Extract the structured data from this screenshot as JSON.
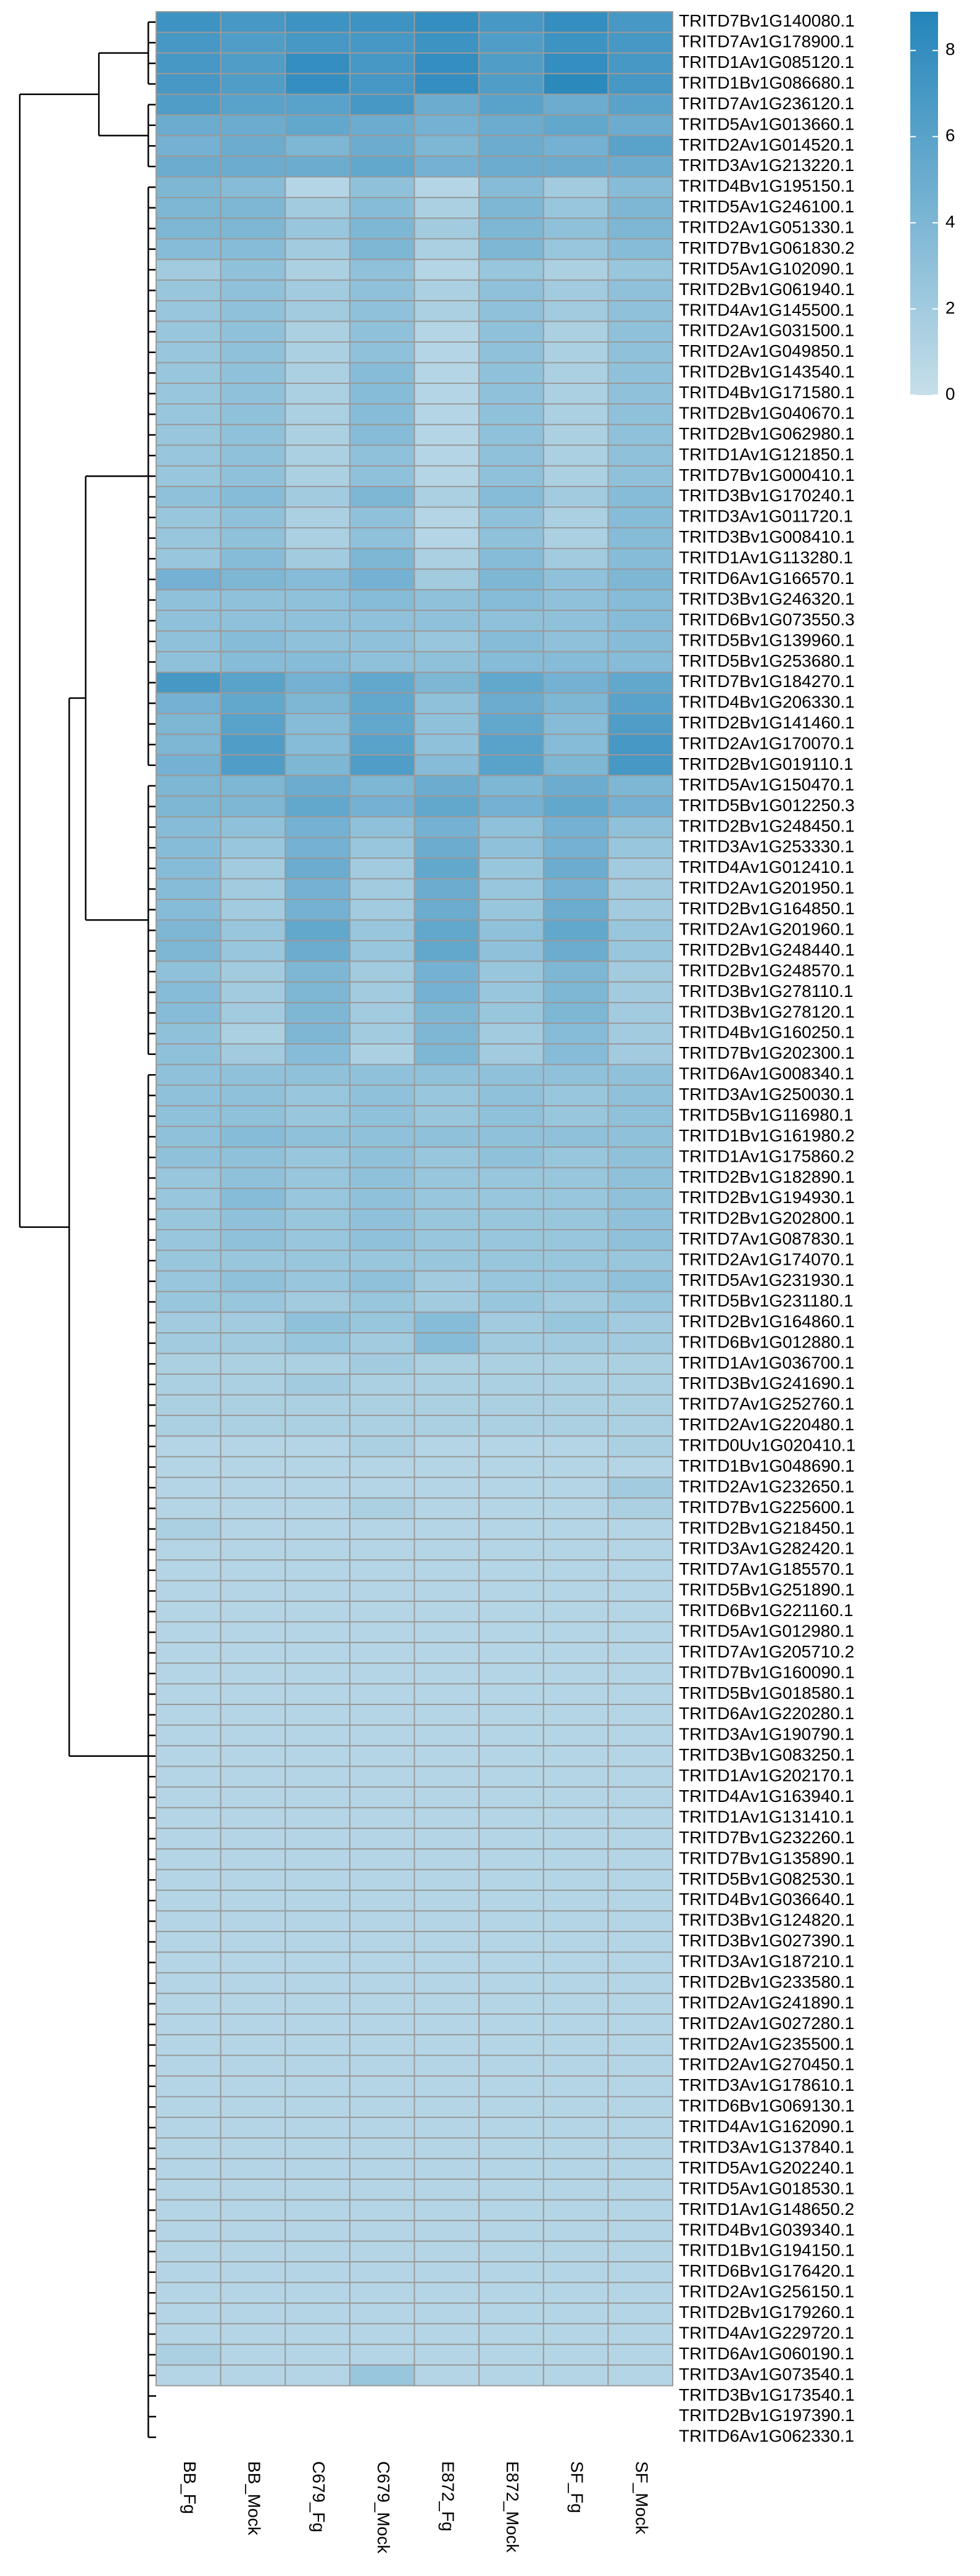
{
  "chart_data": {
    "type": "heatmap",
    "columns": [
      "BB_Fg",
      "BB_Mock",
      "C679_Fg",
      "C679_Mock",
      "E872_Fg",
      "E872_Mock",
      "SF_Fg",
      "SF_Mock"
    ],
    "rows": [
      "TRITD7Bv1G140080.1",
      "TRITD7Av1G178900.1",
      "TRITD1Av1G085120.1",
      "TRITD1Bv1G086680.1",
      "TRITD7Av1G236120.1",
      "TRITD5Av1G013660.1",
      "TRITD2Av1G014520.1",
      "TRITD3Av1G213220.1",
      "TRITD4Bv1G195150.1",
      "TRITD5Av1G246100.1",
      "TRITD2Av1G051330.1",
      "TRITD7Bv1G061830.2",
      "TRITD5Av1G102090.1",
      "TRITD2Bv1G061940.1",
      "TRITD4Av1G145500.1",
      "TRITD2Av1G031500.1",
      "TRITD2Av1G049850.1",
      "TRITD2Bv1G143540.1",
      "TRITD4Bv1G171580.1",
      "TRITD2Bv1G040670.1",
      "TRITD2Bv1G062980.1",
      "TRITD1Av1G121850.1",
      "TRITD7Bv1G000410.1",
      "TRITD3Bv1G170240.1",
      "TRITD3Av1G011720.1",
      "TRITD3Bv1G008410.1",
      "TRITD1Av1G113280.1",
      "TRITD6Av1G166570.1",
      "TRITD3Bv1G246320.1",
      "TRITD6Bv1G073550.3",
      "TRITD5Bv1G139960.1",
      "TRITD5Bv1G253680.1",
      "TRITD7Bv1G184270.1",
      "TRITD4Bv1G206330.1",
      "TRITD2Bv1G141460.1",
      "TRITD2Av1G170070.1",
      "TRITD2Bv1G019110.1",
      "TRITD5Av1G150470.1",
      "TRITD5Bv1G012250.3",
      "TRITD2Bv1G248450.1",
      "TRITD3Av1G253330.1",
      "TRITD4Av1G012410.1",
      "TRITD2Av1G201950.1",
      "TRITD2Bv1G164850.1",
      "TRITD2Av1G201960.1",
      "TRITD2Bv1G248440.1",
      "TRITD2Bv1G248570.1",
      "TRITD3Bv1G278110.1",
      "TRITD3Bv1G278120.1",
      "TRITD4Bv1G160250.1",
      "TRITD7Bv1G202300.1",
      "TRITD6Av1G008340.1",
      "TRITD3Av1G250030.1",
      "TRITD5Bv1G116980.1",
      "TRITD1Bv1G161980.2",
      "TRITD1Av1G175860.2",
      "TRITD2Bv1G182890.1",
      "TRITD2Bv1G194930.1",
      "TRITD2Bv1G202800.1",
      "TRITD7Av1G087830.1",
      "TRITD2Av1G174070.1",
      "TRITD5Av1G231930.1",
      "TRITD5Bv1G231180.1",
      "TRITD2Bv1G164860.1",
      "TRITD6Bv1G012880.1",
      "TRITD1Av1G036700.1",
      "TRITD3Bv1G241690.1",
      "TRITD7Av1G252760.1",
      "TRITD2Av1G220480.1",
      "TRITD0Uv1G020410.1",
      "TRITD1Bv1G048690.1",
      "TRITD2Av1G232650.1",
      "TRITD7Bv1G225600.1",
      "TRITD2Bv1G218450.1",
      "TRITD3Av1G282420.1",
      "TRITD7Av1G185570.1",
      "TRITD5Bv1G251890.1",
      "TRITD6Bv1G221160.1",
      "TRITD5Av1G012980.1",
      "TRITD7Av1G205710.2",
      "TRITD7Bv1G160090.1",
      "TRITD5Bv1G018580.1",
      "TRITD6Av1G220280.1",
      "TRITD3Av1G190790.1",
      "TRITD3Bv1G083250.1",
      "TRITD1Av1G202170.1",
      "TRITD4Av1G163940.1",
      "TRITD1Av1G131410.1",
      "TRITD7Bv1G232260.1",
      "TRITD7Bv1G135890.1",
      "TRITD5Bv1G082530.1",
      "TRITD4Bv1G036640.1",
      "TRITD3Bv1G124820.1",
      "TRITD3Bv1G027390.1",
      "TRITD3Av1G187210.1",
      "TRITD2Bv1G233580.1",
      "TRITD2Av1G241890.1",
      "TRITD2Av1G027280.1",
      "TRITD2Av1G235500.1",
      "TRITD2Av1G270450.1",
      "TRITD3Av1G178610.1",
      "TRITD6Bv1G069130.1",
      "TRITD4Av1G162090.1",
      "TRITD3Av1G137840.1",
      "TRITD5Av1G202240.1",
      "TRITD5Av1G018530.1",
      "TRITD1Av1G148650.2",
      "TRITD4Bv1G039340.1",
      "TRITD1Bv1G194150.1",
      "TRITD6Bv1G176420.1",
      "TRITD2Av1G256150.1",
      "TRITD2Bv1G179260.1",
      "TRITD4Av1G229720.1",
      "TRITD6Av1G060190.1",
      "TRITD3Av1G073540.1",
      "TRITD3Bv1G173540.1",
      "TRITD2Bv1G197390.1",
      "TRITD6Av1G062330.1"
    ],
    "values": [
      [
        7.5,
        7,
        7.5,
        7.5,
        8,
        7,
        8,
        7
      ],
      [
        7,
        6.5,
        7,
        7,
        7.5,
        6.5,
        7.5,
        7
      ],
      [
        7,
        6.5,
        8,
        7,
        8,
        6.5,
        8,
        7
      ],
      [
        7,
        6.5,
        8,
        7,
        8,
        6.5,
        8.5,
        7
      ],
      [
        6.5,
        6,
        6,
        7,
        5,
        6,
        5,
        6
      ],
      [
        5,
        5,
        5.5,
        5,
        4.5,
        5,
        5.5,
        5
      ],
      [
        4.5,
        5,
        4,
        5,
        4,
        5,
        4.5,
        6
      ],
      [
        5,
        5,
        5,
        5.5,
        4.5,
        5,
        5,
        5
      ],
      [
        4,
        3.5,
        1,
        3,
        1,
        3.5,
        2,
        3.5
      ],
      [
        4,
        4,
        2,
        3.5,
        1.5,
        4,
        2.5,
        4
      ],
      [
        4,
        4,
        2.5,
        4,
        2,
        4,
        3,
        4
      ],
      [
        3.5,
        3.5,
        2,
        4,
        1.5,
        4,
        2.5,
        3.5
      ],
      [
        2,
        3,
        1.5,
        3,
        1,
        2.5,
        1.5,
        2.5
      ],
      [
        2.5,
        3,
        2,
        3,
        1.5,
        3,
        2,
        3
      ],
      [
        2.5,
        3,
        2,
        3,
        1.5,
        3,
        2,
        3
      ],
      [
        2.5,
        3,
        1.5,
        3,
        1,
        3,
        1.5,
        3
      ],
      [
        2.5,
        3,
        1.5,
        3,
        1,
        3,
        1.5,
        3
      ],
      [
        2.5,
        3,
        1.5,
        3.5,
        1,
        3,
        1.5,
        3
      ],
      [
        2.5,
        3,
        1.5,
        3.5,
        1,
        3,
        1.5,
        3
      ],
      [
        2.5,
        3,
        1.5,
        3.5,
        1,
        3,
        1.5,
        3
      ],
      [
        2.5,
        3,
        1.5,
        3.5,
        1,
        3,
        1.5,
        3
      ],
      [
        2.5,
        3,
        1.5,
        3,
        1,
        3,
        1.5,
        3
      ],
      [
        2.5,
        3,
        1.5,
        3,
        1,
        3,
        1.5,
        3
      ],
      [
        3,
        3.5,
        2,
        4,
        1.5,
        3.5,
        2,
        3.5
      ],
      [
        2.5,
        3,
        1.5,
        3,
        1,
        3,
        1.5,
        3.5
      ],
      [
        2.5,
        3,
        1.5,
        3,
        1,
        3,
        1.5,
        3.5
      ],
      [
        2.5,
        3.5,
        2,
        4,
        1.5,
        3.5,
        2,
        3.5
      ],
      [
        4.5,
        4,
        3.5,
        4.5,
        2,
        4,
        3,
        4
      ],
      [
        3,
        3,
        3,
        3.5,
        3,
        3.5,
        3,
        3.5
      ],
      [
        3,
        3,
        3,
        3,
        3,
        3,
        3,
        3.5
      ],
      [
        3,
        3.5,
        3,
        3,
        2.5,
        3.5,
        3,
        3.5
      ],
      [
        3,
        3.5,
        3.5,
        3,
        3,
        3.5,
        3.5,
        3.5
      ],
      [
        7,
        6,
        4.5,
        5.5,
        4,
        5.5,
        4.5,
        5.5
      ],
      [
        4.5,
        5.5,
        4,
        5.5,
        3,
        5,
        4,
        6
      ],
      [
        4,
        6,
        3.5,
        5.5,
        3,
        5.5,
        3.5,
        6.5
      ],
      [
        4,
        6.5,
        3.5,
        6,
        3,
        6,
        3.5,
        7
      ],
      [
        4.5,
        6.5,
        4,
        6.5,
        3.5,
        6,
        4,
        7
      ],
      [
        4,
        4,
        5,
        4,
        5,
        4,
        5,
        4
      ],
      [
        4,
        4,
        5.5,
        4.5,
        5.5,
        4.5,
        5.5,
        4.5
      ],
      [
        3.5,
        3,
        4.5,
        3,
        4.5,
        3,
        4.5,
        3
      ],
      [
        3.5,
        2.5,
        4.5,
        2.5,
        5,
        3,
        4.5,
        2.5
      ],
      [
        3.5,
        2,
        5,
        2,
        5.5,
        2.5,
        5,
        2
      ],
      [
        3.5,
        2,
        4.5,
        2,
        5,
        2.5,
        4.5,
        2
      ],
      [
        3.5,
        2,
        4.5,
        2,
        5,
        2.5,
        5,
        2
      ],
      [
        4,
        2.5,
        5.5,
        2.5,
        5.5,
        3,
        5.5,
        2.5
      ],
      [
        4,
        2.5,
        5,
        2.5,
        5.5,
        3,
        5,
        2.5
      ],
      [
        3,
        2,
        4,
        2,
        4.5,
        2.5,
        4,
        2
      ],
      [
        3.5,
        2,
        4,
        2,
        4.5,
        2.5,
        4,
        2
      ],
      [
        3.5,
        2,
        4,
        2,
        4,
        2.5,
        4,
        2
      ],
      [
        3,
        1.5,
        4,
        2,
        4,
        2,
        3.5,
        2
      ],
      [
        3,
        2,
        3.5,
        1.5,
        4,
        2,
        3.5,
        2
      ],
      [
        3,
        3,
        3,
        3,
        3,
        3,
        3,
        3
      ],
      [
        3,
        3,
        2.5,
        3,
        2.5,
        3,
        2.5,
        3
      ],
      [
        3,
        3,
        2.5,
        3,
        2.5,
        3,
        2.5,
        3
      ],
      [
        3,
        3.5,
        3,
        3,
        3,
        3,
        3,
        3
      ],
      [
        3,
        3,
        2.5,
        3,
        2.5,
        3,
        2.5,
        3
      ],
      [
        2.5,
        3,
        2.5,
        3,
        2.5,
        2.5,
        2.5,
        3
      ],
      [
        2.5,
        3.5,
        2.5,
        3,
        2.5,
        2.5,
        2.5,
        3
      ],
      [
        2.5,
        3,
        2.5,
        3,
        2.5,
        2.5,
        2.5,
        3
      ],
      [
        2.5,
        3,
        2.5,
        3,
        2.5,
        2.5,
        2.5,
        3
      ],
      [
        2.5,
        2.5,
        2.5,
        2.5,
        2.5,
        2.5,
        2.5,
        2.5
      ],
      [
        2.5,
        3,
        2.5,
        3,
        2,
        2.5,
        2.5,
        3
      ],
      [
        2.5,
        2.5,
        2,
        2.5,
        2,
        2.5,
        2,
        2.5
      ],
      [
        2,
        2,
        3,
        2.5,
        3.5,
        2,
        2.5,
        2
      ],
      [
        2,
        2,
        2.5,
        2,
        3.5,
        2,
        2,
        2
      ],
      [
        1.5,
        1.5,
        1.5,
        2,
        1.5,
        1.5,
        1.5,
        1.5
      ],
      [
        1.5,
        1.5,
        2,
        1.5,
        1.5,
        1.5,
        1.5,
        1.5
      ],
      [
        1.5,
        1.5,
        1.5,
        1.5,
        1.5,
        1.5,
        1.5,
        1.5
      ],
      [
        1.5,
        1.5,
        1.5,
        1.5,
        1.5,
        1.5,
        1.5,
        1.5
      ],
      [
        1,
        1,
        1,
        1.5,
        1,
        1,
        1,
        1.5
      ],
      [
        1,
        1,
        1,
        1,
        1,
        1,
        1,
        1
      ],
      [
        1,
        1,
        1,
        1,
        1,
        1,
        1,
        2
      ],
      [
        1,
        1,
        1,
        1.5,
        1,
        1,
        1,
        1.5
      ],
      [
        1.5,
        1,
        1,
        1,
        1,
        1,
        1,
        1
      ],
      [
        1,
        1,
        1,
        1,
        1,
        1,
        1,
        1
      ],
      [
        1,
        1,
        1,
        1,
        1,
        1,
        1,
        1
      ],
      [
        1,
        1,
        1,
        1,
        1,
        1,
        1,
        1
      ],
      [
        1,
        1,
        1,
        1,
        1,
        1,
        1,
        1
      ],
      [
        1,
        1,
        1,
        1,
        1,
        1,
        1,
        1
      ],
      [
        1,
        1,
        1,
        1,
        1,
        1,
        1,
        1
      ],
      [
        1,
        1,
        1,
        1,
        1,
        1,
        1,
        1
      ],
      [
        1,
        1,
        1,
        1,
        1,
        1,
        1,
        1
      ],
      [
        1,
        1,
        1,
        1,
        1,
        1,
        1,
        1
      ],
      [
        1,
        1,
        1,
        1,
        1,
        1,
        1,
        1
      ],
      [
        1,
        1,
        1,
        1,
        1,
        1,
        1,
        1
      ],
      [
        1,
        1,
        1,
        1,
        1,
        1,
        1,
        1
      ],
      [
        1,
        1,
        1,
        1,
        1,
        1,
        1,
        1
      ],
      [
        1,
        1,
        1,
        1,
        1,
        1,
        1,
        1
      ],
      [
        1,
        1,
        1,
        1,
        1,
        1,
        1,
        1
      ],
      [
        1,
        1,
        1,
        1,
        1,
        1,
        1,
        1
      ],
      [
        1,
        1,
        1,
        1,
        1,
        1,
        1,
        1
      ],
      [
        1,
        1,
        1,
        1,
        1,
        1,
        1,
        1
      ],
      [
        1,
        1,
        1,
        1,
        1,
        1,
        1,
        1
      ],
      [
        1,
        1,
        1,
        1,
        1,
        1,
        1,
        1
      ],
      [
        1,
        1,
        1,
        1,
        1,
        1,
        1,
        1
      ],
      [
        1,
        1,
        1,
        1,
        1,
        1,
        1,
        1
      ],
      [
        1,
        1,
        1,
        1,
        1,
        1,
        1,
        1
      ],
      [
        1,
        1,
        1,
        1,
        1,
        1,
        1,
        1
      ],
      [
        1,
        1,
        1,
        1,
        1,
        1,
        1,
        1
      ],
      [
        1,
        1,
        1,
        1,
        1,
        1,
        1,
        1
      ],
      [
        1,
        1,
        1,
        1,
        1,
        1,
        1,
        1
      ],
      [
        1,
        1,
        1,
        1,
        1,
        1,
        1,
        1
      ],
      [
        1,
        1,
        1,
        1,
        1,
        1,
        1,
        1
      ],
      [
        1,
        1,
        1,
        1,
        1,
        1,
        1,
        1
      ],
      [
        1,
        1,
        1,
        1,
        1,
        1,
        1,
        1
      ],
      [
        1,
        1,
        1,
        1,
        1,
        1,
        1,
        1
      ],
      [
        1,
        1,
        1,
        1,
        1,
        1,
        1,
        1
      ],
      [
        1,
        1,
        1,
        1,
        1,
        1,
        1,
        1
      ],
      [
        1,
        1,
        1,
        1,
        1,
        1,
        1,
        1
      ],
      [
        1,
        1,
        1,
        1,
        1,
        1,
        1,
        1
      ],
      [
        1,
        1,
        1,
        1,
        1,
        1,
        1,
        1
      ],
      [
        1,
        1,
        1,
        1,
        1,
        1,
        1,
        1
      ],
      [
        1,
        1,
        1,
        1,
        1,
        1,
        1,
        1
      ],
      [
        1.5,
        1,
        1,
        1,
        1,
        1,
        1,
        1
      ],
      [
        1,
        1,
        1,
        2.5,
        1,
        1,
        1,
        1
      ]
    ],
    "colorlim": [
      0,
      8.9
    ],
    "colorticks": [
      0,
      2,
      4,
      6,
      8
    ],
    "colors": {
      "low": "#c6dfea",
      "high": "#2485ba"
    }
  }
}
